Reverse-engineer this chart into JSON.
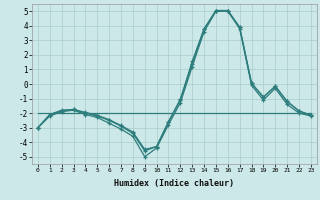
{
  "xlabel": "Humidex (Indice chaleur)",
  "x": [
    0,
    1,
    2,
    3,
    4,
    5,
    6,
    7,
    8,
    9,
    10,
    11,
    12,
    13,
    14,
    15,
    16,
    17,
    18,
    19,
    20,
    21,
    22,
    23
  ],
  "line1": [
    -3.0,
    -2.2,
    -1.9,
    -1.8,
    -2.1,
    -2.3,
    -2.7,
    -3.1,
    -3.6,
    -5.0,
    -4.4,
    -2.8,
    -1.3,
    1.2,
    3.6,
    5.0,
    5.0,
    3.8,
    -0.1,
    -1.1,
    -0.3,
    -1.4,
    -2.0,
    -2.2
  ],
  "line2": [
    -3.0,
    -2.1,
    -1.85,
    -1.75,
    -2.0,
    -2.2,
    -2.5,
    -2.9,
    -3.4,
    -4.6,
    -4.3,
    -2.6,
    -1.1,
    1.4,
    3.75,
    5.05,
    5.05,
    3.9,
    0.05,
    -0.9,
    -0.15,
    -1.2,
    -1.85,
    -2.15
  ],
  "line3": [
    -3.0,
    -2.1,
    -1.8,
    -1.75,
    -1.95,
    -2.15,
    -2.45,
    -2.85,
    -3.3,
    -4.5,
    -4.3,
    -2.6,
    -1.05,
    1.55,
    3.8,
    5.05,
    5.05,
    3.9,
    0.05,
    -0.9,
    -0.15,
    -1.2,
    -1.85,
    -2.15
  ],
  "line_flat": [
    -2.0,
    -2.0,
    -2.0,
    -2.0,
    -2.0,
    -2.0,
    -2.0,
    -2.0,
    -2.0,
    -2.0,
    -2.0,
    -2.0,
    -2.0,
    -2.0,
    -2.0,
    -2.0,
    -2.0,
    -2.0,
    -2.0,
    -2.0,
    -2.0,
    -2.0,
    -2.0,
    -2.0
  ],
  "color": "#2d7d7d",
  "bg_color": "#cce8e8",
  "grid_color": "#aacccc",
  "ylim": [
    -5.5,
    5.5
  ],
  "yticks": [
    -5,
    -4,
    -3,
    -2,
    -1,
    0,
    1,
    2,
    3,
    4,
    5
  ],
  "marker": "+"
}
